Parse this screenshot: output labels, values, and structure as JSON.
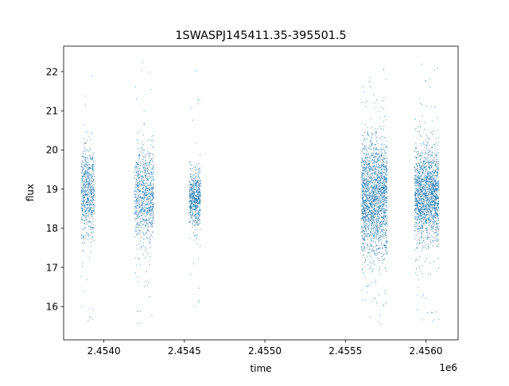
{
  "chart_data": {
    "type": "scatter",
    "title": "1SWASPJ145411.35-395501.5",
    "xlabel": "time",
    "ylabel": "flux",
    "x_offset_label": "1e6",
    "xlim": [
      2.45375,
      2.4562
    ],
    "ylim": [
      15.15,
      22.65
    ],
    "x_ticks": [
      2.454,
      2.4545,
      2.455,
      2.4555,
      2.456
    ],
    "x_tick_labels": [
      "2.4540",
      "2.4545",
      "2.4550",
      "2.4555",
      "2.4560"
    ],
    "y_ticks": [
      16,
      17,
      18,
      19,
      20,
      21,
      22
    ],
    "y_tick_labels": [
      "16",
      "17",
      "18",
      "19",
      "20",
      "21",
      "22"
    ],
    "grid": false,
    "point_color": "#1f77b4",
    "observing_seasons": [
      {
        "x_start": 2.45386,
        "x_end": 2.45394,
        "center": 18.9,
        "spread": 0.55,
        "y_min": 15.5,
        "y_max": 22.0,
        "density": 1.0
      },
      {
        "x_start": 2.45419,
        "x_end": 2.45431,
        "center": 18.85,
        "spread": 0.6,
        "y_min": 15.55,
        "y_max": 22.25,
        "density": 1.3
      },
      {
        "x_start": 2.45453,
        "x_end": 2.4546,
        "center": 18.8,
        "spread": 0.35,
        "y_min": 15.9,
        "y_max": 22.1,
        "density": 0.9
      },
      {
        "x_start": 2.4556,
        "x_end": 2.45576,
        "center": 18.8,
        "spread": 0.75,
        "y_min": 15.5,
        "y_max": 22.2,
        "density": 3.0
      },
      {
        "x_start": 2.45593,
        "x_end": 2.45608,
        "center": 18.85,
        "spread": 0.6,
        "y_min": 15.6,
        "y_max": 22.2,
        "density": 2.6
      }
    ]
  }
}
